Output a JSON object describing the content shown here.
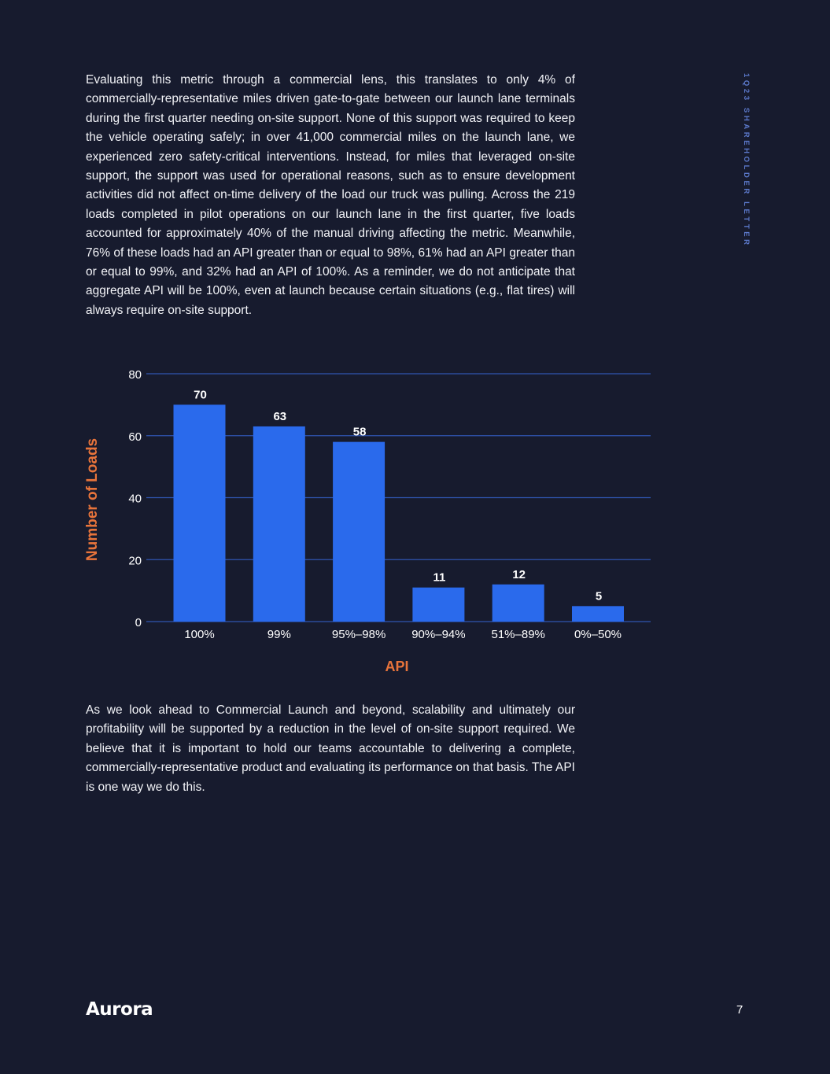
{
  "doc": {
    "side_label": "1Q23 SHAREHOLDER LETTER",
    "paragraph_1": "Evaluating this metric through a commercial lens, this translates to only 4% of commercially-representative miles driven gate-to-gate between our launch lane terminals during the first quarter needing on-site support. None of this support was required to keep the vehicle operating safely; in over 41,000 commercial miles on the launch lane, we experienced zero safety-critical interventions. Instead, for miles that leveraged on-site support, the support was used for operational reasons, such as to ensure development activities did not affect on-time delivery of the load our truck was pulling. Across the 219 loads completed in pilot operations on our launch lane in the first quarter, five loads accounted for approximately 40% of the manual driving affecting the metric. Meanwhile, 76% of these loads had an API greater than or equal to 98%, 61% had an API greater than or equal to 99%, and 32% had an API of 100%. As a reminder, we do not anticipate that aggregate API will be 100%, even at launch because certain situations (e.g., flat tires) will always require on-site support.",
    "paragraph_2": "As we look ahead to Commercial Launch and beyond, scalability and ultimately our profitability will be supported by a reduction in the level of on-site support required. We believe that it is important to hold our teams accountable to delivering a complete, commercially-representative product and evaluating its performance on that basis. The API is one way we do this.",
    "logo_text": "Aurora",
    "page_number": "7"
  },
  "colors": {
    "background": "#171b2e",
    "bar": "#2a6aec",
    "gridline": "#2f55b0",
    "axis_label": "#e8743b",
    "side_label": "#5b78c9"
  },
  "chart_data": {
    "type": "bar",
    "categories": [
      "100%",
      "99%",
      "95%–98%",
      "90%–94%",
      "51%–89%",
      "0%–50%"
    ],
    "values": [
      70,
      63,
      58,
      11,
      12,
      5
    ],
    "data_labels": [
      "70",
      "63",
      "58",
      "11",
      "12",
      "5"
    ],
    "xlabel": "API",
    "ylabel": "Number of Loads",
    "ylim": [
      0,
      80
    ],
    "yticks": [
      0,
      20,
      40,
      60,
      80
    ],
    "ytick_labels": [
      "0",
      "20",
      "40",
      "60",
      "80"
    ],
    "grid": true,
    "legend": "none"
  }
}
